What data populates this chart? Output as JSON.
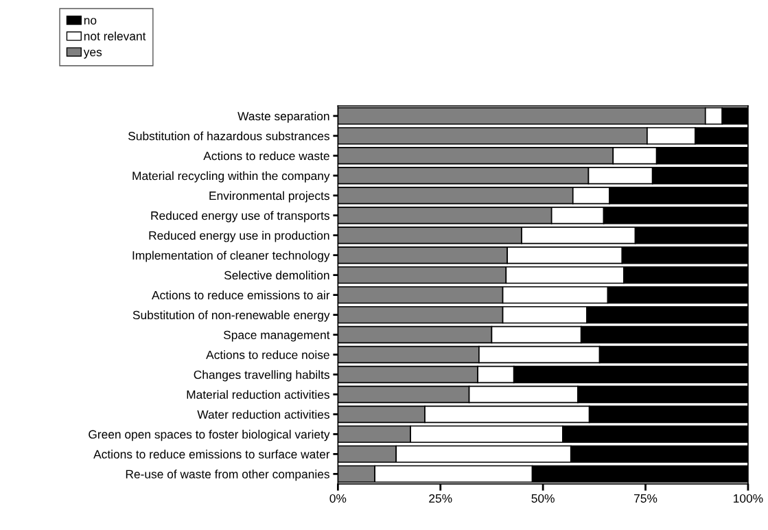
{
  "chart_data": {
    "type": "bar",
    "orientation": "horizontal",
    "stacked": true,
    "categories": [
      "Waste separation",
      "Substitution of hazardous substrances",
      "Actions to reduce waste",
      "Material recycling within the company",
      "Environmental projects",
      "Reduced energy use of transports",
      "Reduced energy use in production",
      "Implementation of cleaner technology",
      "Selective demolition",
      "Actions to reduce emissions to air",
      "Substitution of non-renewable energy",
      "Space management",
      "Actions to reduce noise",
      "Changes travelling habilts",
      "Material reduction activities",
      "Water reduction activities",
      "Green open spaces to foster biological variety",
      "Actions to reduce emissions to surface water",
      "Re-use of waste from other companies"
    ],
    "series": [
      {
        "name": "yes",
        "color": "#808080",
        "values": [
          89.6,
          75.4,
          67.1,
          61.1,
          57.3,
          52.1,
          44.8,
          41.3,
          41.0,
          40.2,
          40.2,
          37.5,
          34.4,
          34.1,
          32.0,
          21.2,
          17.7,
          14.2,
          9.0
        ]
      },
      {
        "name": "not relevant",
        "color": "#ffffff",
        "values": [
          4.1,
          11.7,
          10.6,
          15.6,
          8.9,
          12.7,
          27.7,
          28.0,
          28.7,
          25.6,
          20.5,
          21.8,
          29.4,
          8.8,
          26.5,
          40.1,
          37.1,
          42.6,
          38.4
        ]
      },
      {
        "name": "no",
        "color": "#000000",
        "values": [
          6.3,
          12.9,
          22.3,
          23.3,
          33.8,
          35.2,
          27.5,
          30.7,
          30.3,
          34.2,
          39.3,
          40.7,
          36.2,
          57.1,
          41.5,
          38.7,
          45.2,
          43.2,
          52.6
        ]
      }
    ],
    "xlim": [
      0,
      100
    ],
    "xticks": [
      {
        "value": 0,
        "label": "0%"
      },
      {
        "value": 25,
        "label": "25%"
      },
      {
        "value": 50,
        "label": "50%"
      },
      {
        "value": 75,
        "label": "75%"
      },
      {
        "value": 100,
        "label": "100%"
      }
    ],
    "grid": false,
    "legend": "top left"
  }
}
